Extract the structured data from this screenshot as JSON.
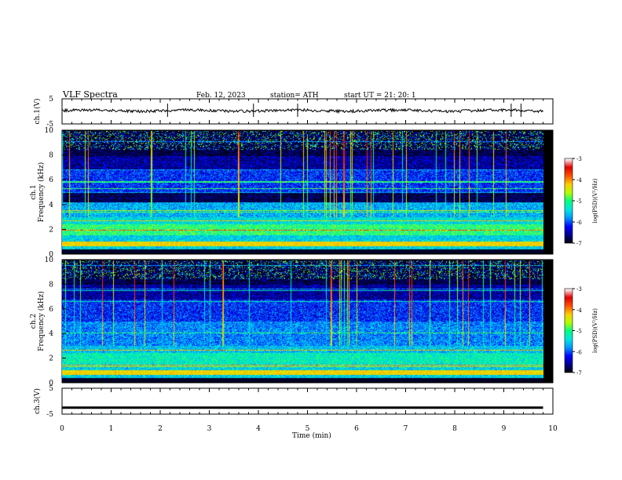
{
  "header": {
    "title": "VLF  Spectra",
    "date": "Feb. 12, 2023",
    "station": "station= ATH",
    "start": "start  UT  =    21: 20: 1"
  },
  "chart_data": [
    {
      "type": "line",
      "panel": "ch1-waveform",
      "ylabel": "ch.1(V)",
      "ylim": [
        -5,
        5
      ],
      "yticks": [
        "5",
        "-5"
      ],
      "xlim": [
        0,
        10
      ],
      "baseline_v": 0.3,
      "spikes_min": [
        2.15,
        3.9,
        4.8,
        9.15,
        9.35
      ]
    },
    {
      "type": "heatmap",
      "panel": "ch1-spectrogram",
      "ylabel": "ch.1\nFrequency (kHz)",
      "ylim": [
        0,
        10
      ],
      "yticks": [
        "0",
        "2",
        "4",
        "6",
        "8",
        "10"
      ],
      "xlim": [
        0,
        9.8
      ],
      "colorbar": {
        "label": "log(PSD)(V²/Hz)",
        "range": [
          -7,
          -3
        ],
        "ticks": [
          "-3",
          "-4",
          "-5",
          "-6",
          "-7"
        ]
      }
    },
    {
      "type": "heatmap",
      "panel": "ch2-spectrogram",
      "ylabel": "ch.2\nFrequency (kHz)",
      "ylim": [
        0,
        10
      ],
      "yticks": [
        "0",
        "2",
        "4",
        "6",
        "8",
        "10"
      ],
      "xlim": [
        0,
        9.8
      ],
      "colorbar": {
        "label": "log(PSD)(V²/Hz)",
        "range": [
          -7,
          -3
        ],
        "ticks": [
          "-3",
          "-4",
          "-5",
          "-6",
          "-7"
        ]
      }
    },
    {
      "type": "line",
      "panel": "ch3-waveform",
      "ylabel": "ch.3(V)",
      "ylim": [
        -5,
        5
      ],
      "yticks": [
        "5",
        "-5"
      ],
      "xlim": [
        0,
        10
      ],
      "baseline_v": -2.5
    }
  ],
  "xaxis": {
    "label": "Time  (min)",
    "ticks": [
      "0",
      "1",
      "2",
      "3",
      "4",
      "5",
      "6",
      "7",
      "8",
      "9",
      "10"
    ]
  },
  "colors": {
    "colormap": [
      "#000000",
      "#00008b",
      "#0000ff",
      "#0096ff",
      "#00e5e5",
      "#00ff80",
      "#b4ff00",
      "#ffcc00",
      "#ff5000",
      "#e00000",
      "#ffffff"
    ]
  }
}
